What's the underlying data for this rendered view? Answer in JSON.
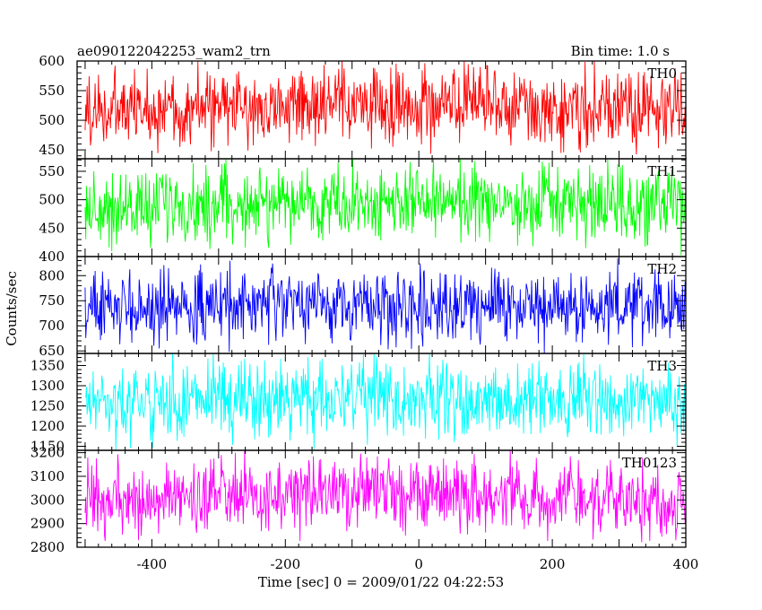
{
  "chart_data": {
    "type": "line",
    "title": "ae090122042253_wam2_trn",
    "subtitle": "Bin time: 1.0 s",
    "xlabel": "Time [sec] 0 = 2009/01/22 04:22:53",
    "ylabel": "Counts/sec",
    "xlim": [
      -512,
      400
    ],
    "x_ticks": [
      -400,
      -200,
      0,
      200,
      400
    ],
    "grid": false,
    "bin_time": 1.0,
    "panels": [
      {
        "name": "TH0",
        "color": "#ff0000",
        "ylim": [
          435,
          600
        ],
        "y_ticks": [
          450,
          500,
          550,
          600
        ],
        "mean": 515,
        "amp": 32,
        "trend": 10
      },
      {
        "name": "TH1",
        "color": "#00ff00",
        "ylim": [
          400,
          572
        ],
        "y_ticks": [
          400,
          450,
          500,
          550
        ],
        "mean": 483,
        "amp": 32,
        "trend": 12
      },
      {
        "name": "TH2",
        "color": "#0000ff",
        "ylim": [
          645,
          838
        ],
        "y_ticks": [
          650,
          700,
          750,
          800
        ],
        "mean": 733,
        "amp": 35,
        "trend": 10
      },
      {
        "name": "TH3",
        "color": "#00ffff",
        "ylim": [
          1140,
          1380
        ],
        "y_ticks": [
          1150,
          1200,
          1250,
          1300,
          1350
        ],
        "mean": 1255,
        "amp": 45,
        "trend": 15
      },
      {
        "name": "TH0123",
        "color": "#ff00ff",
        "ylim": [
          2800,
          3210
        ],
        "y_ticks": [
          2800,
          2900,
          3000,
          3100,
          3200
        ],
        "mean": 2985,
        "amp": 75,
        "trend": 40
      }
    ]
  }
}
